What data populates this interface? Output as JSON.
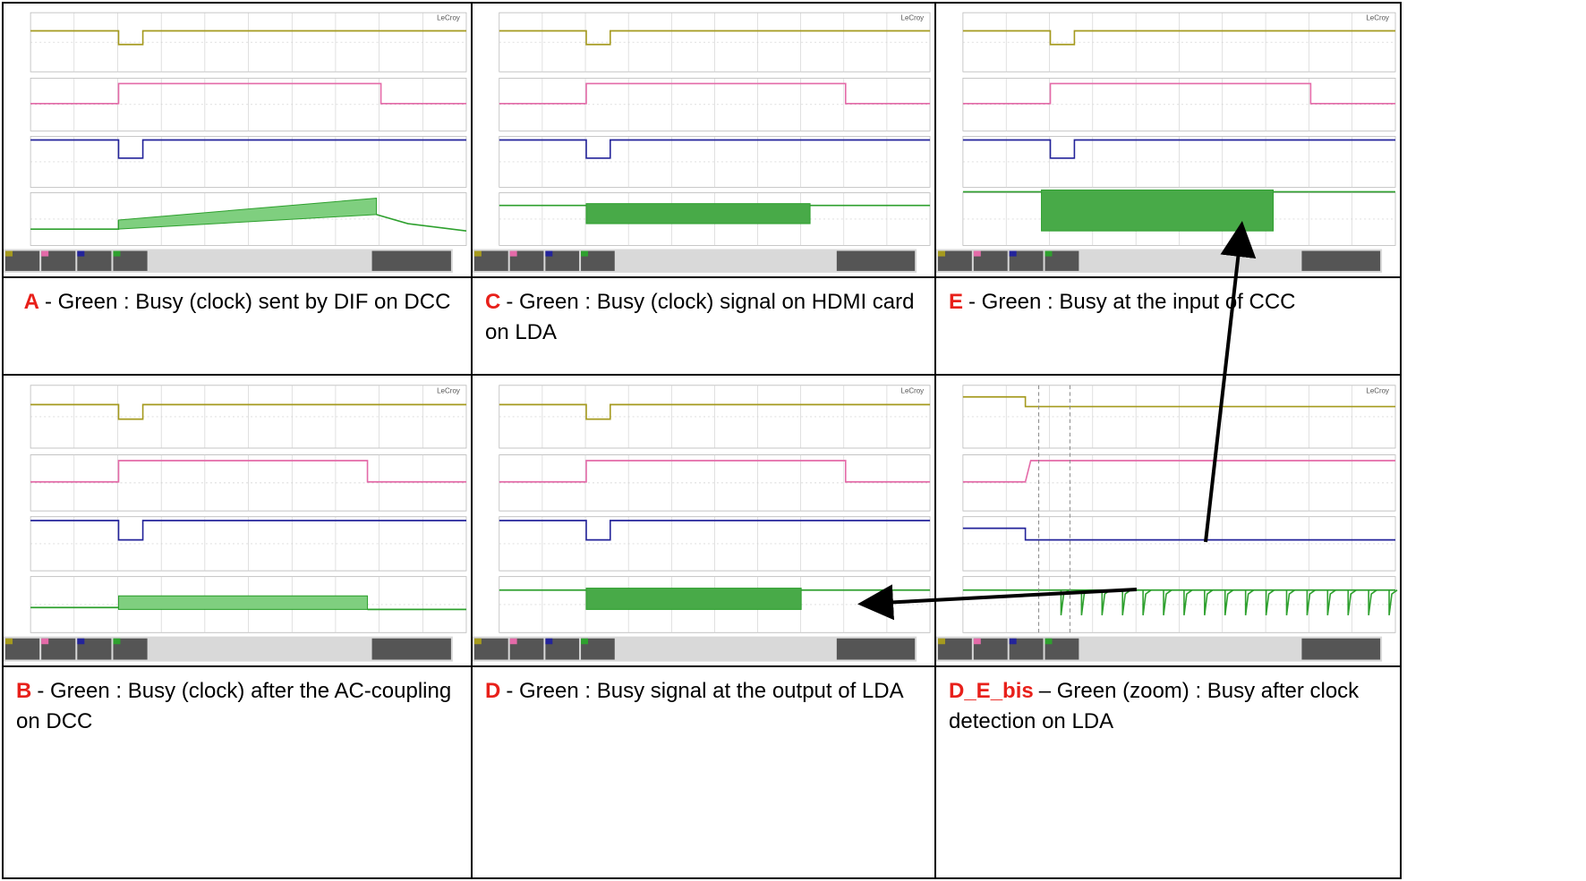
{
  "panels": [
    {
      "label": "A",
      "caption": "- Green : Busy (clock) sent by DIF on DCC",
      "brand": "LeCroy"
    },
    {
      "label": "C",
      "caption": "- Green : Busy (clock) signal on HDMI card on LDA",
      "brand": "LeCroy"
    },
    {
      "label": "E",
      "caption": "- Green : Busy at the input of CCC",
      "brand": "LeCroy"
    },
    {
      "label": "B",
      "caption": "- Green : Busy (clock) after the AC-coupling on DCC",
      "brand": "LeCroy"
    },
    {
      "label": "D",
      "caption": "- Green : Busy signal at the output of LDA",
      "brand": "LeCroy"
    },
    {
      "label": "D_E_bis",
      "caption": "– Green (zoom) :  Busy after clock detection on LDA",
      "brand": "LeCroy"
    }
  ]
}
